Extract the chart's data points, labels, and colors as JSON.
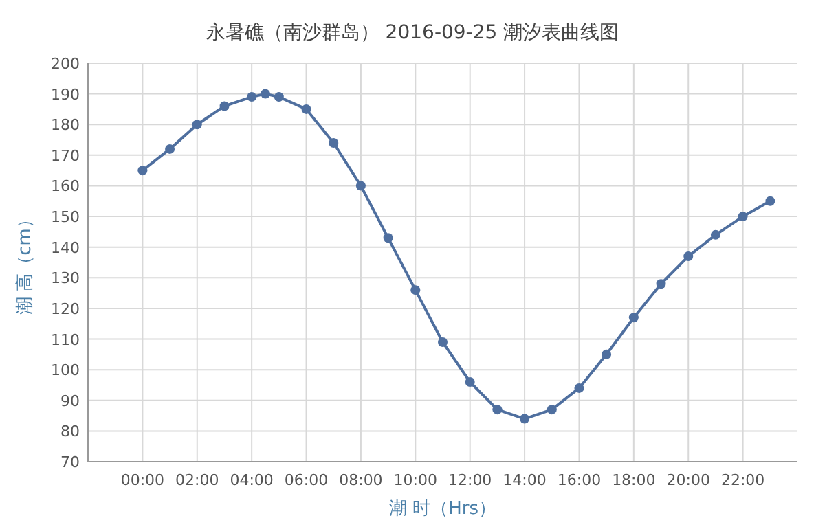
{
  "chart_data": {
    "type": "line",
    "title": "永暑礁（南沙群岛） 2016-09-25 潮汐表曲线图",
    "xlabel": "潮 时（Hrs）",
    "ylabel": "潮 高（cm）",
    "x": [
      0,
      1,
      2,
      3,
      4,
      4.5,
      5,
      6,
      7,
      8,
      9,
      10,
      11,
      12,
      13,
      14,
      15,
      16,
      17,
      18,
      19,
      20,
      21,
      22,
      23
    ],
    "series": [
      {
        "color": "#4f6f9f",
        "values": [
          165,
          172,
          180,
          186,
          189,
          190,
          189,
          185,
          174,
          160,
          143,
          126,
          109,
          96,
          87,
          84,
          87,
          94,
          105,
          117,
          128,
          137,
          144,
          150,
          155
        ]
      }
    ],
    "xlim": [
      -2,
      24
    ],
    "ylim": [
      70,
      200
    ],
    "xticks": [
      {
        "value": 0,
        "label": "00:00"
      },
      {
        "value": 2,
        "label": "02:00"
      },
      {
        "value": 4,
        "label": "04:00"
      },
      {
        "value": 6,
        "label": "06:00"
      },
      {
        "value": 8,
        "label": "08:00"
      },
      {
        "value": 10,
        "label": "10:00"
      },
      {
        "value": 12,
        "label": "12:00"
      },
      {
        "value": 14,
        "label": "14:00"
      },
      {
        "value": 16,
        "label": "16:00"
      },
      {
        "value": 18,
        "label": "18:00"
      },
      {
        "value": 20,
        "label": "20:00"
      },
      {
        "value": 22,
        "label": "22:00"
      }
    ],
    "yticks": [
      70,
      80,
      90,
      100,
      110,
      120,
      130,
      140,
      150,
      160,
      170,
      180,
      190,
      200
    ],
    "grid": true,
    "marker": "circle",
    "line_style": "solid"
  }
}
